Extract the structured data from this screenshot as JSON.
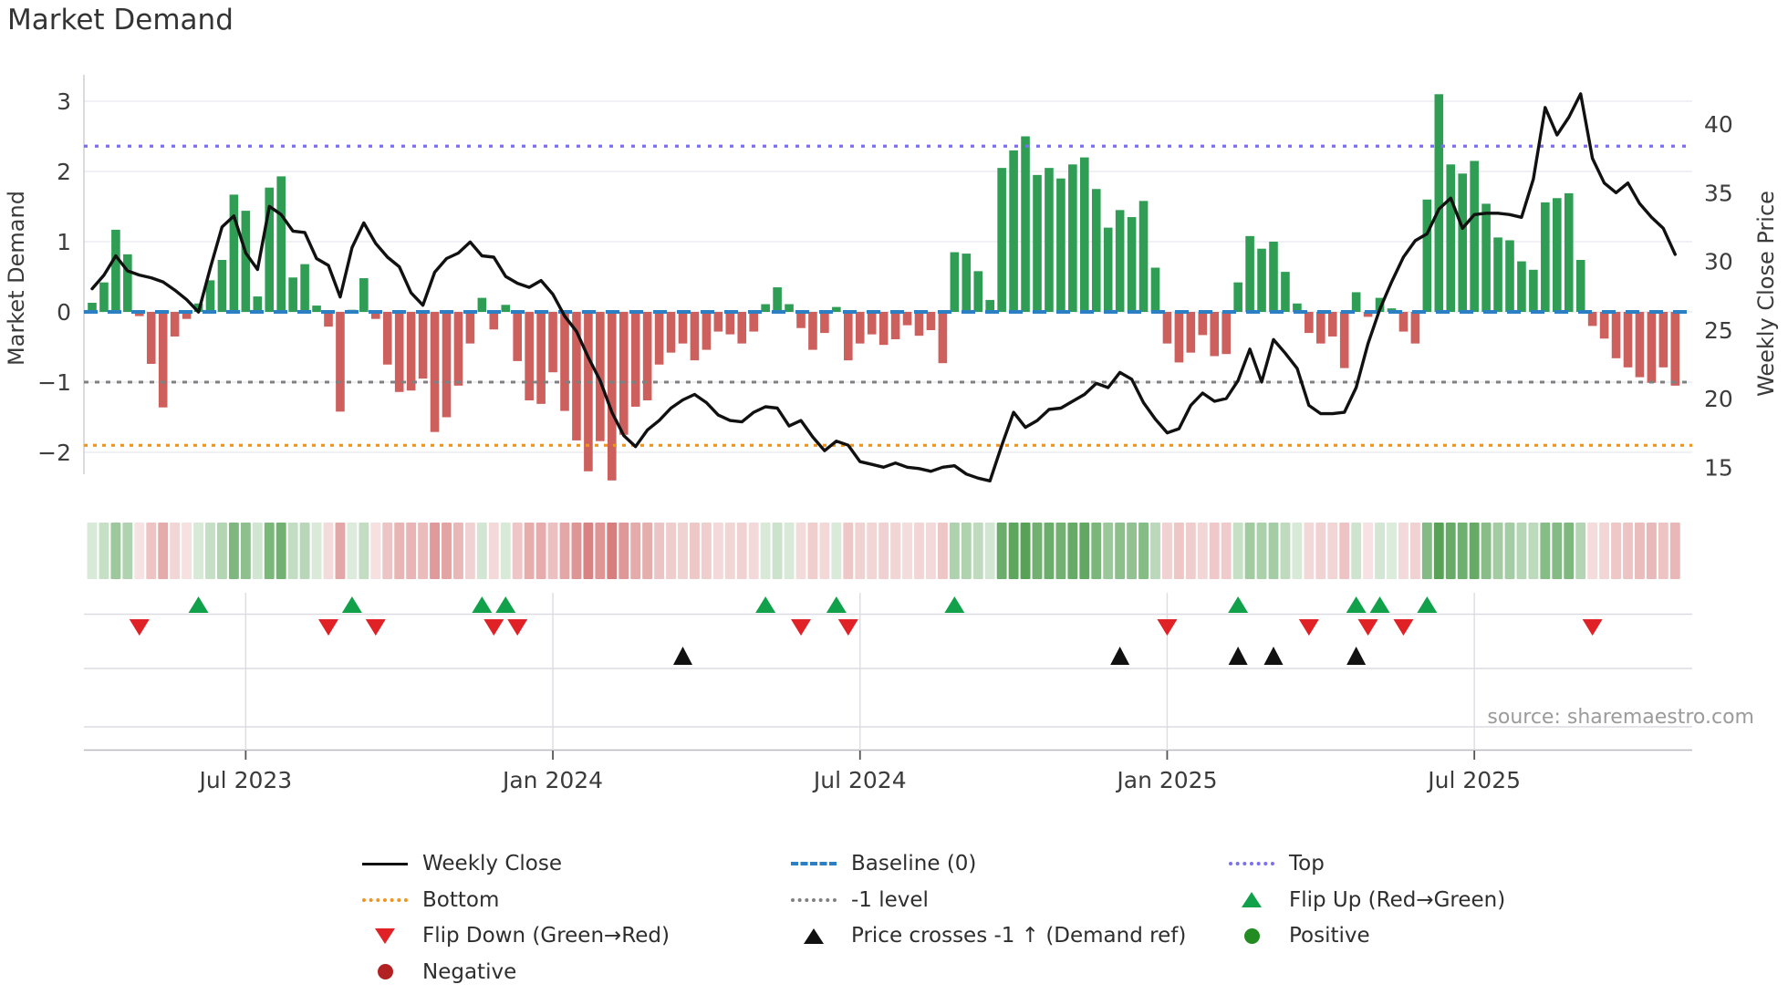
{
  "title": "Market Demand",
  "source_text": "source: sharemaestro.com",
  "colors": {
    "bar_positive": "#2f9e54",
    "bar_negative": "#cd5f5c",
    "price_line": "#111111",
    "baseline": "#2b7fc2",
    "top_line": "#7a70f0",
    "bottom_line": "#ef951f",
    "minus_one_line": "#808080",
    "flip_up": "#12a14b",
    "flip_down": "#e02126",
    "price_cross": "#111111",
    "positive_dot": "#228b22",
    "negative_dot": "#b22222",
    "grid": "#ebebf2",
    "panel_grid": "#dcdce2",
    "tick_text": "#3d3d3d",
    "source_text": "#9b9b9b",
    "heat_green": "46,139,46",
    "heat_red": "205,92,92"
  },
  "chart_data": {
    "type": "bar+line combo with signal heatmap and event markers",
    "title": "Market Demand",
    "left_axis": {
      "label": "Market Demand",
      "ticks": [
        3,
        2,
        1,
        0,
        -1,
        -2
      ],
      "range": [
        -2.45,
        3.38
      ]
    },
    "right_axis": {
      "label": "Weekly Close Price",
      "ticks": [
        40,
        35,
        30,
        25,
        20,
        15
      ],
      "range": [
        14.2,
        43.5
      ]
    },
    "x_ticks": [
      {
        "label": "Jul 2023",
        "week": 13
      },
      {
        "label": "Jan 2024",
        "week": 39
      },
      {
        "label": "Jul 2024",
        "week": 65
      },
      {
        "label": "Jan 2025",
        "week": 91
      },
      {
        "label": "Jul 2025",
        "week": 117
      }
    ],
    "ref_lines": {
      "top": 2.36,
      "baseline": 0,
      "minus_one": -1,
      "bottom": -1.9
    },
    "legend_note": "grid horizontal only in main chart",
    "series": [
      {
        "name": "Market Demand (weekly bars)",
        "axis": "left",
        "values": [
          0.13,
          0.42,
          1.17,
          0.82,
          -0.06,
          -0.74,
          -1.36,
          -0.35,
          -0.1,
          0.12,
          0.45,
          0.74,
          1.67,
          1.44,
          0.22,
          1.77,
          1.93,
          0.49,
          0.68,
          0.09,
          -0.21,
          -1.42,
          0.03,
          0.48,
          -0.1,
          -0.75,
          -1.14,
          -1.12,
          -0.95,
          -1.71,
          -1.5,
          -1.05,
          -0.45,
          0.2,
          -0.25,
          0.1,
          -0.7,
          -1.26,
          -1.31,
          -0.86,
          -1.41,
          -1.83,
          -2.27,
          -1.84,
          -2.4,
          -1.75,
          -1.35,
          -1.26,
          -0.75,
          -0.58,
          -0.45,
          -0.69,
          -0.54,
          -0.28,
          -0.32,
          -0.45,
          -0.28,
          0.11,
          0.35,
          0.11,
          -0.23,
          -0.54,
          -0.3,
          0.07,
          -0.69,
          -0.45,
          -0.32,
          -0.47,
          -0.39,
          -0.19,
          -0.34,
          -0.26,
          -0.73,
          0.85,
          0.83,
          0.58,
          0.17,
          2.05,
          2.3,
          2.5,
          1.95,
          2.05,
          1.9,
          2.1,
          2.2,
          1.75,
          1.2,
          1.45,
          1.35,
          1.58,
          0.63,
          -0.45,
          -0.72,
          -0.58,
          -0.33,
          -0.63,
          -0.6,
          0.42,
          1.08,
          0.9,
          1.0,
          0.57,
          0.12,
          -0.3,
          -0.45,
          -0.35,
          -0.8,
          0.28,
          -0.07,
          0.2,
          0.05,
          -0.28,
          -0.45,
          1.6,
          3.1,
          2.1,
          1.97,
          2.15,
          1.54,
          1.06,
          1.02,
          0.72,
          0.6,
          1.56,
          1.62,
          1.69,
          0.74,
          -0.2,
          -0.38,
          -0.66,
          -0.79,
          -0.93,
          -1.01,
          -0.79,
          -1.05
        ]
      },
      {
        "name": "Weekly Close",
        "axis": "right",
        "values": [
          28.0,
          29.0,
          30.4,
          29.3,
          29.0,
          28.8,
          28.5,
          27.9,
          27.2,
          26.3,
          29.5,
          32.5,
          33.3,
          30.6,
          29.4,
          34.0,
          33.4,
          32.2,
          32.1,
          30.2,
          29.7,
          27.4,
          31.0,
          32.8,
          31.3,
          30.3,
          29.6,
          27.7,
          26.8,
          29.2,
          30.2,
          30.6,
          31.4,
          30.4,
          30.3,
          28.9,
          28.4,
          28.1,
          28.6,
          27.6,
          26.0,
          24.9,
          23.0,
          21.3,
          19.0,
          17.3,
          16.5,
          17.7,
          18.4,
          19.3,
          19.9,
          20.3,
          19.7,
          18.8,
          18.4,
          18.3,
          19.0,
          19.4,
          19.3,
          18.0,
          18.4,
          17.2,
          16.2,
          16.9,
          16.6,
          15.4,
          15.2,
          15.0,
          15.3,
          15.0,
          14.9,
          14.7,
          15.0,
          15.1,
          14.5,
          14.2,
          14.0,
          16.6,
          19.0,
          17.9,
          18.4,
          19.2,
          19.3,
          19.8,
          20.3,
          21.1,
          20.8,
          21.9,
          21.4,
          19.7,
          18.5,
          17.5,
          17.8,
          19.5,
          20.4,
          19.8,
          20.0,
          21.3,
          23.6,
          21.2,
          24.3,
          23.3,
          22.2,
          19.5,
          18.9,
          18.9,
          19.0,
          20.8,
          24.0,
          26.5,
          28.5,
          30.3,
          31.5,
          32.0,
          33.8,
          34.6,
          32.4,
          33.4,
          33.5,
          33.5,
          33.4,
          33.2,
          36.0,
          41.2,
          39.2,
          40.5,
          42.2,
          37.5,
          35.7,
          35.0,
          35.7,
          34.2,
          33.2,
          32.4,
          30.5
        ]
      }
    ],
    "markers": {
      "flip_up_weeks": [
        9,
        22,
        33,
        35,
        57,
        63,
        73,
        97,
        107,
        109,
        113
      ],
      "flip_down_weeks": [
        4,
        20,
        24,
        34,
        36,
        60,
        64,
        91,
        103,
        108,
        111,
        127
      ],
      "price_cross_weeks": [
        50,
        87,
        97,
        100,
        107
      ]
    },
    "heatmap": {
      "note": "one cell per week, shade proportional to |demand|, green positive / red negative"
    }
  },
  "legend": {
    "columns": [
      [
        {
          "swatch": "line-black",
          "label": "Weekly Close"
        },
        {
          "swatch": "dotted-orange",
          "label": "Bottom"
        },
        {
          "swatch": "tri-down-red",
          "label": "Flip Down (Green→Red)"
        },
        {
          "swatch": "dot-darkred",
          "label": "Negative"
        }
      ],
      [
        {
          "swatch": "dashed-blue",
          "label": "Baseline (0)"
        },
        {
          "swatch": "dotted-gray",
          "label": "-1 level"
        },
        {
          "swatch": "tri-up-black",
          "label": "Price crosses -1 ↑ (Demand ref)"
        }
      ],
      [
        {
          "swatch": "dotted-purple",
          "label": "Top"
        },
        {
          "swatch": "tri-up-green",
          "label": "Flip Up (Red→Green)"
        },
        {
          "swatch": "dot-green",
          "label": "Positive"
        }
      ]
    ]
  }
}
